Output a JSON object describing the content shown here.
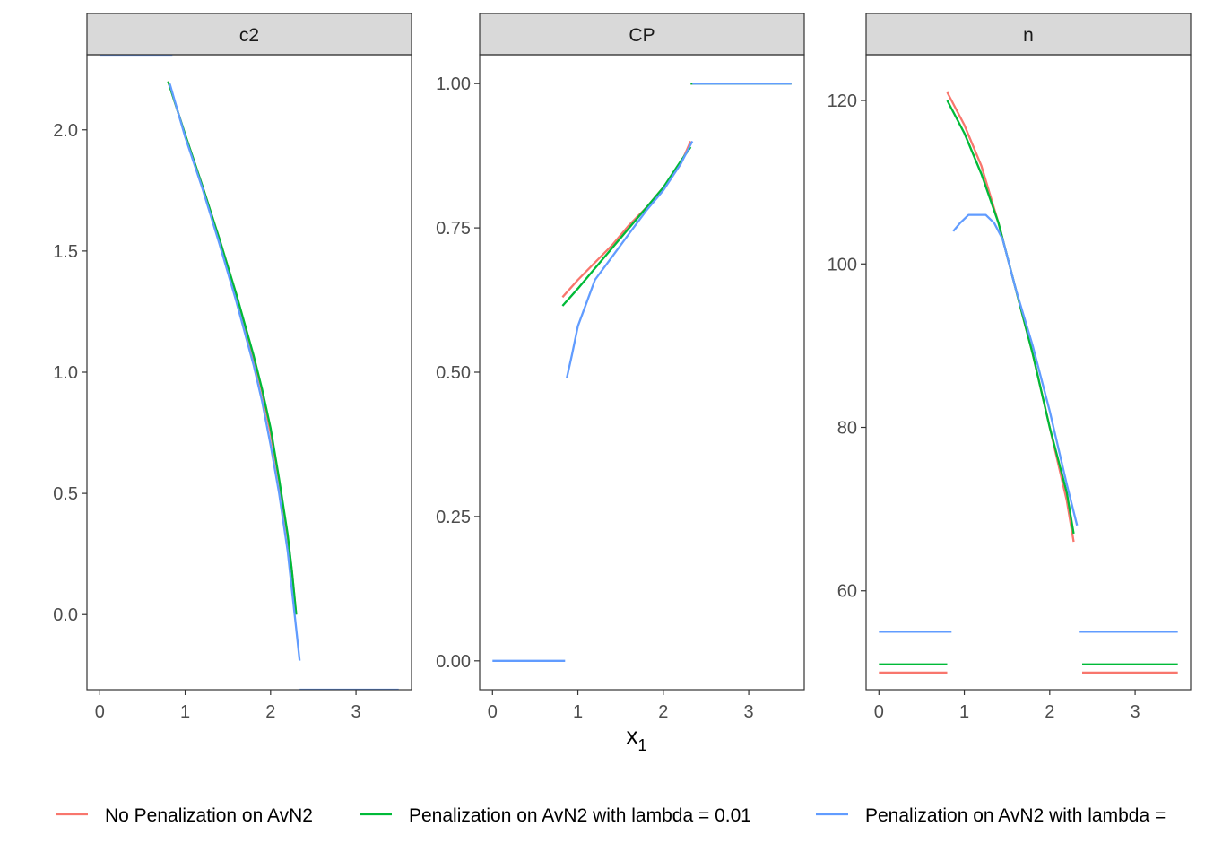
{
  "x_axis_title": "x",
  "x_axis_title_subscript": "1",
  "legend": {
    "placement": "bottom",
    "entries": [
      {
        "label": "No Penalization on AvN2",
        "color": "#F8766D"
      },
      {
        "label": "Penalization on AvN2 with lambda = 0.01",
        "color": "#00BA38"
      },
      {
        "label": "Penalization on AvN2 with lambda = ",
        "color": "#619CFF"
      }
    ]
  },
  "chart_data": [
    {
      "type": "line",
      "facet": "c2",
      "xlim": [
        -0.15,
        3.65
      ],
      "ylim": [
        -0.31,
        2.31
      ],
      "x_ticks": [
        0,
        1,
        2,
        3
      ],
      "y_ticks": [
        0.0,
        0.5,
        1.0,
        1.5,
        2.0
      ],
      "y_tick_labels": [
        "0.0",
        "0.5",
        "1.0",
        "1.5",
        "2.0"
      ],
      "grid": false,
      "series": [
        {
          "color": "#F8766D",
          "segments": [
            [
              [
                0.8,
                2.2
              ],
              [
                1.0,
                1.98
              ],
              [
                1.2,
                1.77
              ],
              [
                1.4,
                1.55
              ],
              [
                1.6,
                1.32
              ],
              [
                1.8,
                1.06
              ],
              [
                1.9,
                0.92
              ],
              [
                2.0,
                0.75
              ],
              [
                2.1,
                0.55
              ],
              [
                2.2,
                0.32
              ],
              [
                2.25,
                0.18
              ],
              [
                2.3,
                0.0
              ]
            ]
          ]
        },
        {
          "color": "#00BA38",
          "segments": [
            [
              [
                0.8,
                2.2
              ],
              [
                1.0,
                1.98
              ],
              [
                1.2,
                1.77
              ],
              [
                1.4,
                1.55
              ],
              [
                1.6,
                1.32
              ],
              [
                1.8,
                1.07
              ],
              [
                1.9,
                0.93
              ],
              [
                2.0,
                0.77
              ],
              [
                2.1,
                0.56
              ],
              [
                2.2,
                0.33
              ],
              [
                2.25,
                0.18
              ],
              [
                2.3,
                0.0
              ]
            ]
          ]
        },
        {
          "color": "#619CFF",
          "segments": [
            [
              [
                0.0,
                2.31
              ],
              [
                0.85,
                2.31
              ]
            ],
            [
              [
                0.82,
                2.19
              ],
              [
                1.0,
                1.97
              ],
              [
                1.2,
                1.76
              ],
              [
                1.4,
                1.53
              ],
              [
                1.6,
                1.29
              ],
              [
                1.8,
                1.03
              ],
              [
                1.9,
                0.88
              ],
              [
                2.0,
                0.7
              ],
              [
                2.1,
                0.5
              ],
              [
                2.2,
                0.26
              ],
              [
                2.3,
                -0.06
              ],
              [
                2.34,
                -0.19
              ]
            ],
            [
              [
                2.34,
                -0.31
              ],
              [
                3.5,
                -0.31
              ]
            ]
          ]
        }
      ]
    },
    {
      "type": "line",
      "facet": "CP",
      "xlim": [
        -0.15,
        3.65
      ],
      "ylim": [
        -0.05,
        1.05
      ],
      "x_ticks": [
        0,
        1,
        2,
        3
      ],
      "y_ticks": [
        0.0,
        0.25,
        0.5,
        0.75,
        1.0
      ],
      "y_tick_labels": [
        "0.00",
        "0.25",
        "0.50",
        "0.75",
        "1.00"
      ],
      "grid": false,
      "series": [
        {
          "color": "#F8766D",
          "segments": [
            [
              [
                0.82,
                0.63
              ],
              [
                1.0,
                0.66
              ],
              [
                1.2,
                0.69
              ],
              [
                1.4,
                0.72
              ],
              [
                1.6,
                0.755
              ],
              [
                1.8,
                0.785
              ],
              [
                2.0,
                0.82
              ],
              [
                2.2,
                0.86
              ],
              [
                2.32,
                0.9
              ]
            ],
            [
              [
                2.32,
                1.0
              ],
              [
                3.5,
                1.0
              ]
            ]
          ]
        },
        {
          "color": "#00BA38",
          "segments": [
            [
              [
                0.82,
                0.615
              ],
              [
                1.0,
                0.645
              ],
              [
                1.2,
                0.68
              ],
              [
                1.4,
                0.715
              ],
              [
                1.6,
                0.75
              ],
              [
                1.8,
                0.785
              ],
              [
                2.0,
                0.82
              ],
              [
                2.2,
                0.865
              ],
              [
                2.32,
                0.89
              ]
            ],
            [
              [
                2.32,
                1.0
              ],
              [
                3.5,
                1.0
              ]
            ]
          ]
        },
        {
          "color": "#619CFF",
          "segments": [
            [
              [
                0.0,
                0.0
              ],
              [
                0.85,
                0.0
              ]
            ],
            [
              [
                0.87,
                0.49
              ],
              [
                0.93,
                0.53
              ],
              [
                1.0,
                0.58
              ],
              [
                1.1,
                0.62
              ],
              [
                1.2,
                0.66
              ],
              [
                1.4,
                0.7
              ],
              [
                1.6,
                0.74
              ],
              [
                1.8,
                0.78
              ],
              [
                2.0,
                0.815
              ],
              [
                2.2,
                0.86
              ],
              [
                2.34,
                0.9
              ]
            ],
            [
              [
                2.34,
                1.0
              ],
              [
                3.5,
                1.0
              ]
            ]
          ]
        }
      ]
    },
    {
      "type": "line",
      "facet": "n",
      "xlim": [
        -0.15,
        3.65
      ],
      "ylim": [
        47.9,
        125.6
      ],
      "x_ticks": [
        0,
        1,
        2,
        3
      ],
      "y_ticks": [
        60,
        80,
        100,
        120
      ],
      "y_tick_labels": [
        "60",
        "80",
        "100",
        "120"
      ],
      "grid": false,
      "series": [
        {
          "color": "#F8766D",
          "segments": [
            [
              [
                0.0,
                50.0
              ],
              [
                0.8,
                50.0
              ]
            ],
            [
              [
                0.8,
                121.0
              ],
              [
                1.0,
                117.0
              ],
              [
                1.2,
                112.0
              ],
              [
                1.4,
                105.0
              ],
              [
                1.6,
                97.0
              ],
              [
                1.8,
                89.0
              ],
              [
                2.0,
                80.0
              ],
              [
                2.2,
                71.0
              ],
              [
                2.28,
                66.0
              ]
            ],
            [
              [
                2.38,
                50.0
              ],
              [
                3.5,
                50.0
              ]
            ]
          ]
        },
        {
          "color": "#00BA38",
          "segments": [
            [
              [
                0.0,
                51.0
              ],
              [
                0.8,
                51.0
              ]
            ],
            [
              [
                0.8,
                120.0
              ],
              [
                1.0,
                116.0
              ],
              [
                1.2,
                111.0
              ],
              [
                1.4,
                105.0
              ],
              [
                1.6,
                97.0
              ],
              [
                1.8,
                89.0
              ],
              [
                2.0,
                80.0
              ],
              [
                2.2,
                72.0
              ],
              [
                2.28,
                67.0
              ]
            ],
            [
              [
                2.38,
                51.0
              ],
              [
                3.5,
                51.0
              ]
            ]
          ]
        },
        {
          "color": "#619CFF",
          "segments": [
            [
              [
                0.0,
                55.0
              ],
              [
                0.85,
                55.0
              ]
            ],
            [
              [
                0.87,
                104.0
              ],
              [
                0.95,
                105.0
              ],
              [
                1.05,
                106.0
              ],
              [
                1.25,
                106.0
              ],
              [
                1.35,
                105.0
              ],
              [
                1.45,
                103.0
              ],
              [
                1.6,
                97.0
              ],
              [
                1.8,
                90.0
              ],
              [
                2.0,
                82.0
              ],
              [
                2.2,
                73.0
              ],
              [
                2.32,
                68.0
              ]
            ],
            [
              [
                2.35,
                55.0
              ],
              [
                3.5,
                55.0
              ]
            ]
          ]
        }
      ]
    }
  ]
}
